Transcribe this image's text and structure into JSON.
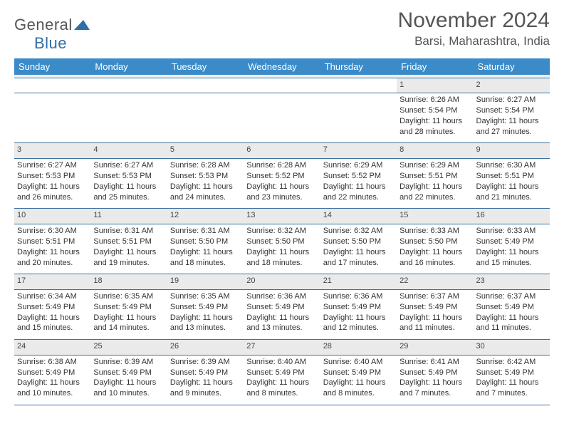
{
  "logo": {
    "word1": "General",
    "word2": "Blue"
  },
  "title": "November 2024",
  "location": "Barsi, Maharashtra, India",
  "colors": {
    "header_bg": "#3b8bc9",
    "header_text": "#ffffff",
    "border": "#3b72a0",
    "daynum_bg": "#eaeaea",
    "text": "#333333",
    "logo_gray": "#555555",
    "logo_blue": "#2f6fa7"
  },
  "day_headers": [
    "Sunday",
    "Monday",
    "Tuesday",
    "Wednesday",
    "Thursday",
    "Friday",
    "Saturday"
  ],
  "weeks": [
    {
      "nums": [
        "",
        "",
        "",
        "",
        "",
        "1",
        "2"
      ],
      "cells": [
        null,
        null,
        null,
        null,
        null,
        {
          "sunrise": "Sunrise: 6:26 AM",
          "sunset": "Sunset: 5:54 PM",
          "daylight1": "Daylight: 11 hours",
          "daylight2": "and 28 minutes."
        },
        {
          "sunrise": "Sunrise: 6:27 AM",
          "sunset": "Sunset: 5:54 PM",
          "daylight1": "Daylight: 11 hours",
          "daylight2": "and 27 minutes."
        }
      ]
    },
    {
      "nums": [
        "3",
        "4",
        "5",
        "6",
        "7",
        "8",
        "9"
      ],
      "cells": [
        {
          "sunrise": "Sunrise: 6:27 AM",
          "sunset": "Sunset: 5:53 PM",
          "daylight1": "Daylight: 11 hours",
          "daylight2": "and 26 minutes."
        },
        {
          "sunrise": "Sunrise: 6:27 AM",
          "sunset": "Sunset: 5:53 PM",
          "daylight1": "Daylight: 11 hours",
          "daylight2": "and 25 minutes."
        },
        {
          "sunrise": "Sunrise: 6:28 AM",
          "sunset": "Sunset: 5:53 PM",
          "daylight1": "Daylight: 11 hours",
          "daylight2": "and 24 minutes."
        },
        {
          "sunrise": "Sunrise: 6:28 AM",
          "sunset": "Sunset: 5:52 PM",
          "daylight1": "Daylight: 11 hours",
          "daylight2": "and 23 minutes."
        },
        {
          "sunrise": "Sunrise: 6:29 AM",
          "sunset": "Sunset: 5:52 PM",
          "daylight1": "Daylight: 11 hours",
          "daylight2": "and 22 minutes."
        },
        {
          "sunrise": "Sunrise: 6:29 AM",
          "sunset": "Sunset: 5:51 PM",
          "daylight1": "Daylight: 11 hours",
          "daylight2": "and 22 minutes."
        },
        {
          "sunrise": "Sunrise: 6:30 AM",
          "sunset": "Sunset: 5:51 PM",
          "daylight1": "Daylight: 11 hours",
          "daylight2": "and 21 minutes."
        }
      ]
    },
    {
      "nums": [
        "10",
        "11",
        "12",
        "13",
        "14",
        "15",
        "16"
      ],
      "cells": [
        {
          "sunrise": "Sunrise: 6:30 AM",
          "sunset": "Sunset: 5:51 PM",
          "daylight1": "Daylight: 11 hours",
          "daylight2": "and 20 minutes."
        },
        {
          "sunrise": "Sunrise: 6:31 AM",
          "sunset": "Sunset: 5:51 PM",
          "daylight1": "Daylight: 11 hours",
          "daylight2": "and 19 minutes."
        },
        {
          "sunrise": "Sunrise: 6:31 AM",
          "sunset": "Sunset: 5:50 PM",
          "daylight1": "Daylight: 11 hours",
          "daylight2": "and 18 minutes."
        },
        {
          "sunrise": "Sunrise: 6:32 AM",
          "sunset": "Sunset: 5:50 PM",
          "daylight1": "Daylight: 11 hours",
          "daylight2": "and 18 minutes."
        },
        {
          "sunrise": "Sunrise: 6:32 AM",
          "sunset": "Sunset: 5:50 PM",
          "daylight1": "Daylight: 11 hours",
          "daylight2": "and 17 minutes."
        },
        {
          "sunrise": "Sunrise: 6:33 AM",
          "sunset": "Sunset: 5:50 PM",
          "daylight1": "Daylight: 11 hours",
          "daylight2": "and 16 minutes."
        },
        {
          "sunrise": "Sunrise: 6:33 AM",
          "sunset": "Sunset: 5:49 PM",
          "daylight1": "Daylight: 11 hours",
          "daylight2": "and 15 minutes."
        }
      ]
    },
    {
      "nums": [
        "17",
        "18",
        "19",
        "20",
        "21",
        "22",
        "23"
      ],
      "cells": [
        {
          "sunrise": "Sunrise: 6:34 AM",
          "sunset": "Sunset: 5:49 PM",
          "daylight1": "Daylight: 11 hours",
          "daylight2": "and 15 minutes."
        },
        {
          "sunrise": "Sunrise: 6:35 AM",
          "sunset": "Sunset: 5:49 PM",
          "daylight1": "Daylight: 11 hours",
          "daylight2": "and 14 minutes."
        },
        {
          "sunrise": "Sunrise: 6:35 AM",
          "sunset": "Sunset: 5:49 PM",
          "daylight1": "Daylight: 11 hours",
          "daylight2": "and 13 minutes."
        },
        {
          "sunrise": "Sunrise: 6:36 AM",
          "sunset": "Sunset: 5:49 PM",
          "daylight1": "Daylight: 11 hours",
          "daylight2": "and 13 minutes."
        },
        {
          "sunrise": "Sunrise: 6:36 AM",
          "sunset": "Sunset: 5:49 PM",
          "daylight1": "Daylight: 11 hours",
          "daylight2": "and 12 minutes."
        },
        {
          "sunrise": "Sunrise: 6:37 AM",
          "sunset": "Sunset: 5:49 PM",
          "daylight1": "Daylight: 11 hours",
          "daylight2": "and 11 minutes."
        },
        {
          "sunrise": "Sunrise: 6:37 AM",
          "sunset": "Sunset: 5:49 PM",
          "daylight1": "Daylight: 11 hours",
          "daylight2": "and 11 minutes."
        }
      ]
    },
    {
      "nums": [
        "24",
        "25",
        "26",
        "27",
        "28",
        "29",
        "30"
      ],
      "cells": [
        {
          "sunrise": "Sunrise: 6:38 AM",
          "sunset": "Sunset: 5:49 PM",
          "daylight1": "Daylight: 11 hours",
          "daylight2": "and 10 minutes."
        },
        {
          "sunrise": "Sunrise: 6:39 AM",
          "sunset": "Sunset: 5:49 PM",
          "daylight1": "Daylight: 11 hours",
          "daylight2": "and 10 minutes."
        },
        {
          "sunrise": "Sunrise: 6:39 AM",
          "sunset": "Sunset: 5:49 PM",
          "daylight1": "Daylight: 11 hours",
          "daylight2": "and 9 minutes."
        },
        {
          "sunrise": "Sunrise: 6:40 AM",
          "sunset": "Sunset: 5:49 PM",
          "daylight1": "Daylight: 11 hours",
          "daylight2": "and 8 minutes."
        },
        {
          "sunrise": "Sunrise: 6:40 AM",
          "sunset": "Sunset: 5:49 PM",
          "daylight1": "Daylight: 11 hours",
          "daylight2": "and 8 minutes."
        },
        {
          "sunrise": "Sunrise: 6:41 AM",
          "sunset": "Sunset: 5:49 PM",
          "daylight1": "Daylight: 11 hours",
          "daylight2": "and 7 minutes."
        },
        {
          "sunrise": "Sunrise: 6:42 AM",
          "sunset": "Sunset: 5:49 PM",
          "daylight1": "Daylight: 11 hours",
          "daylight2": "and 7 minutes."
        }
      ]
    }
  ]
}
